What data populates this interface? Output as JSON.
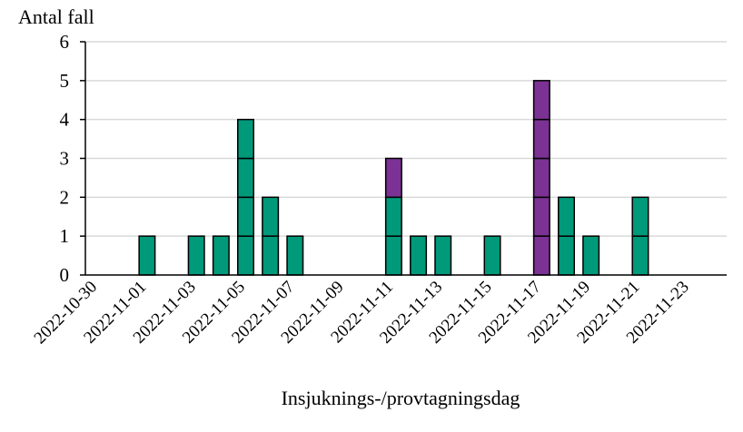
{
  "chart_data": {
    "type": "bar",
    "stacked": true,
    "style": "epicurve-unit-boxes",
    "title": "",
    "ylabel": "Antal fall",
    "xlabel": "Insjuknings-/provtagningsdag",
    "ylim": [
      0,
      6
    ],
    "yticks": [
      "0",
      "1",
      "2",
      "3",
      "4",
      "5",
      "6"
    ],
    "grid": true,
    "legend": "none",
    "categories": [
      "2022-10-30",
      "2022-10-31",
      "2022-11-01",
      "2022-11-02",
      "2022-11-03",
      "2022-11-04",
      "2022-11-05",
      "2022-11-06",
      "2022-11-07",
      "2022-11-08",
      "2022-11-09",
      "2022-11-10",
      "2022-11-11",
      "2022-11-12",
      "2022-11-13",
      "2022-11-14",
      "2022-11-15",
      "2022-11-16",
      "2022-11-17",
      "2022-11-18",
      "2022-11-19",
      "2022-11-20",
      "2022-11-21",
      "2022-11-22",
      "2022-11-23",
      "2022-11-24"
    ],
    "xtick_labels": [
      "2022-10-30",
      "2022-11-01",
      "2022-11-03",
      "2022-11-05",
      "2022-11-07",
      "2022-11-09",
      "2022-11-11",
      "2022-11-13",
      "2022-11-15",
      "2022-11-17",
      "2022-11-19",
      "2022-11-21",
      "2022-11-23"
    ],
    "series": [
      {
        "color": "#00997a",
        "values": [
          0,
          0,
          1,
          0,
          1,
          1,
          4,
          2,
          1,
          0,
          0,
          0,
          2,
          1,
          1,
          0,
          1,
          0,
          0,
          2,
          1,
          0,
          2,
          0,
          0,
          0
        ]
      },
      {
        "color": "#7b3294",
        "values": [
          0,
          0,
          0,
          0,
          0,
          0,
          0,
          0,
          0,
          0,
          0,
          0,
          1,
          0,
          0,
          0,
          0,
          0,
          5,
          0,
          0,
          0,
          0,
          0,
          0,
          0
        ]
      }
    ]
  }
}
